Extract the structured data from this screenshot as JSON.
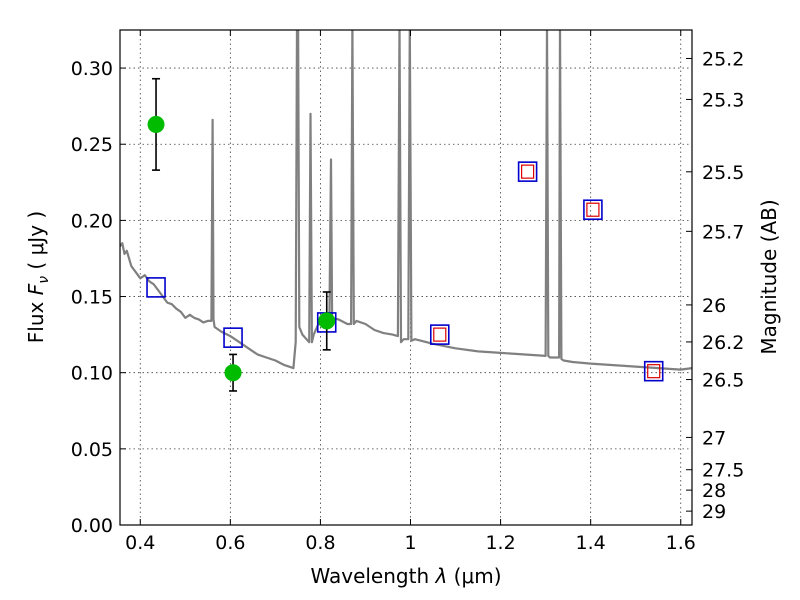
{
  "chart_data": {
    "type": "scatter",
    "title": "",
    "xlabel": "Wavelength  λ (μm)",
    "ylabel": "Flux  F_ν  ( μJy )",
    "ylabel_parts": {
      "prefix": "Flux  ",
      "var": "F",
      "sub": "ν",
      "suffix": "  ( μJy )"
    },
    "xlabel_parts": {
      "prefix": "Wavelength  ",
      "var": "λ",
      "suffix": " (μm)"
    },
    "ylabel_right": "Magnitude (AB)",
    "xlim": [
      0.355,
      1.625
    ],
    "ylim": [
      0.0,
      0.325
    ],
    "grid": true,
    "x_ticks": [
      {
        "value": 0.4,
        "label": "0.4"
      },
      {
        "value": 0.6,
        "label": "0.6"
      },
      {
        "value": 0.8,
        "label": "0.8"
      },
      {
        "value": 1.0,
        "label": "1"
      },
      {
        "value": 1.2,
        "label": "1.2"
      },
      {
        "value": 1.4,
        "label": "1.4"
      },
      {
        "value": 1.6,
        "label": "1.6"
      }
    ],
    "y_ticks": [
      {
        "value": 0.0,
        "label": "0.00"
      },
      {
        "value": 0.05,
        "label": "0.05"
      },
      {
        "value": 0.1,
        "label": "0.10"
      },
      {
        "value": 0.15,
        "label": "0.15"
      },
      {
        "value": 0.2,
        "label": "0.20"
      },
      {
        "value": 0.25,
        "label": "0.25"
      },
      {
        "value": 0.3,
        "label": "0.30"
      }
    ],
    "right_ticks": [
      {
        "flux": 0.3063,
        "label": "25.2"
      },
      {
        "flux": 0.2794,
        "label": "25.3"
      },
      {
        "flux": 0.2319,
        "label": "25.5"
      },
      {
        "flux": 0.1928,
        "label": "25.7"
      },
      {
        "flux": 0.1445,
        "label": "26"
      },
      {
        "flux": 0.1202,
        "label": "26.2"
      },
      {
        "flux": 0.0955,
        "label": "26.5"
      },
      {
        "flux": 0.0575,
        "label": "27"
      },
      {
        "flux": 0.0363,
        "label": "27.5"
      },
      {
        "flux": 0.0229,
        "label": "28"
      },
      {
        "flux": 0.0091,
        "label": "29"
      }
    ],
    "colors": {
      "model": "#808080",
      "observed": "#00bb00",
      "model_photometry": "#0000cc",
      "predicted": "#dd0000",
      "errorbar": "#000000"
    },
    "model_spectrum": {
      "x": [
        0.355,
        0.36,
        0.365,
        0.37,
        0.38,
        0.39,
        0.4,
        0.41,
        0.42,
        0.43,
        0.44,
        0.45,
        0.46,
        0.47,
        0.48,
        0.49,
        0.5,
        0.51,
        0.52,
        0.53,
        0.54,
        0.55,
        0.558,
        0.5605,
        0.5625,
        0.565,
        0.58,
        0.6,
        0.62,
        0.64,
        0.66,
        0.68,
        0.7,
        0.72,
        0.74,
        0.745,
        0.748,
        0.7505,
        0.753,
        0.76,
        0.775,
        0.778,
        0.781,
        0.785,
        0.8,
        0.82,
        0.8235,
        0.826,
        0.84,
        0.86,
        0.868,
        0.871,
        0.874,
        0.88,
        0.9,
        0.92,
        0.94,
        0.96,
        0.972,
        0.9755,
        0.979,
        0.985,
        0.995,
        0.9985,
        1.002,
        1.01,
        1.05,
        1.1,
        1.15,
        1.2,
        1.25,
        1.3,
        1.303,
        1.306,
        1.31,
        1.33,
        1.332,
        1.335,
        1.34,
        1.36,
        1.4,
        1.45,
        1.5,
        1.55,
        1.6,
        1.625
      ],
      "y": [
        0.183,
        0.185,
        0.178,
        0.18,
        0.17,
        0.166,
        0.162,
        0.164,
        0.16,
        0.158,
        0.154,
        0.15,
        0.146,
        0.145,
        0.142,
        0.14,
        0.136,
        0.138,
        0.136,
        0.135,
        0.133,
        0.134,
        0.134,
        0.266,
        0.135,
        0.13,
        0.127,
        0.124,
        0.12,
        0.116,
        0.112,
        0.11,
        0.108,
        0.105,
        0.103,
        0.12,
        0.33,
        0.33,
        0.13,
        0.125,
        0.12,
        0.27,
        0.12,
        0.125,
        0.135,
        0.135,
        0.24,
        0.136,
        0.135,
        0.132,
        0.132,
        0.33,
        0.132,
        0.134,
        0.132,
        0.128,
        0.126,
        0.125,
        0.124,
        0.33,
        0.12,
        0.122,
        0.122,
        0.33,
        0.121,
        0.122,
        0.119,
        0.116,
        0.114,
        0.113,
        0.112,
        0.111,
        0.33,
        0.111,
        0.11,
        0.11,
        0.33,
        0.109,
        0.108,
        0.107,
        0.106,
        0.105,
        0.104,
        0.103,
        0.102,
        0.103
      ]
    },
    "observed": [
      {
        "x": 0.435,
        "y": 0.263,
        "err": 0.03
      },
      {
        "x": 0.606,
        "y": 0.1,
        "err": 0.012
      },
      {
        "x": 0.814,
        "y": 0.134,
        "err": 0.019
      }
    ],
    "model_photometry": [
      {
        "x": 0.435,
        "y": 0.156
      },
      {
        "x": 0.606,
        "y": 0.123
      },
      {
        "x": 0.814,
        "y": 0.133
      },
      {
        "x": 1.065,
        "y": 0.125
      },
      {
        "x": 1.26,
        "y": 0.232
      },
      {
        "x": 1.405,
        "y": 0.207
      },
      {
        "x": 1.54,
        "y": 0.101
      }
    ],
    "predicted": [
      {
        "x": 1.065,
        "y": 0.125
      },
      {
        "x": 1.26,
        "y": 0.232
      },
      {
        "x": 1.405,
        "y": 0.207
      },
      {
        "x": 1.54,
        "y": 0.101
      }
    ]
  }
}
